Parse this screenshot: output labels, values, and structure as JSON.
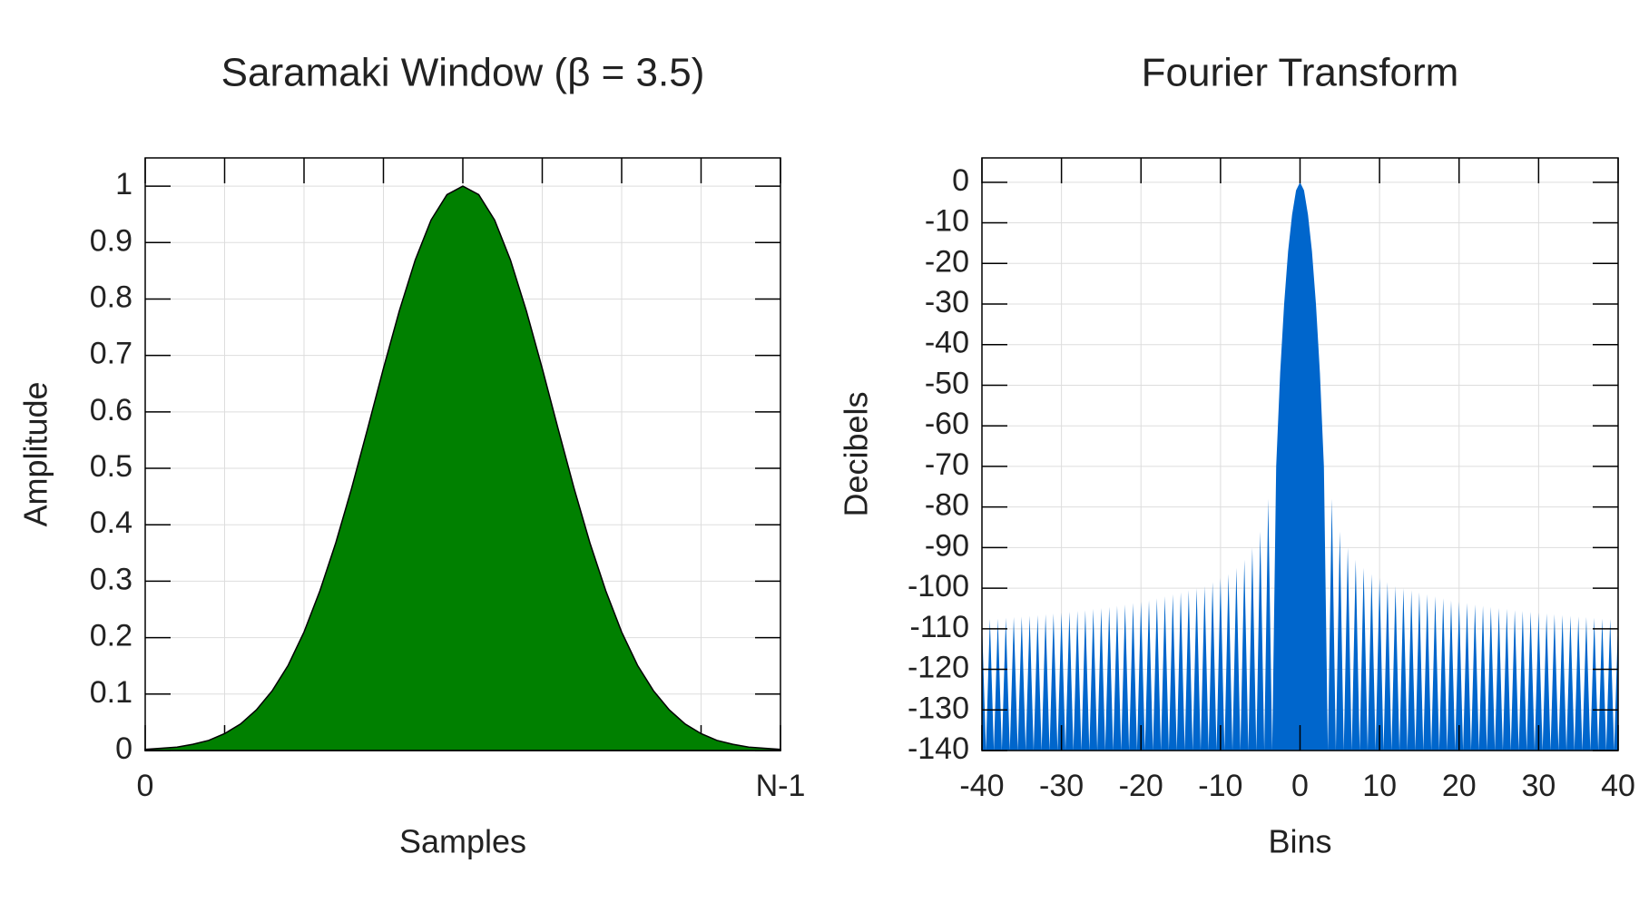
{
  "chart_data": [
    {
      "type": "area",
      "title": "Saramaki Window (β = 3.5)",
      "xlabel": "Samples",
      "ylabel": "Amplitude",
      "color": "#008000",
      "edge_color": "#000000",
      "x": [
        0,
        0.025,
        0.05,
        0.075,
        0.1,
        0.125,
        0.15,
        0.175,
        0.2,
        0.225,
        0.25,
        0.275,
        0.3,
        0.325,
        0.35,
        0.375,
        0.4,
        0.425,
        0.45,
        0.475,
        0.5,
        0.525,
        0.55,
        0.575,
        0.6,
        0.625,
        0.65,
        0.675,
        0.7,
        0.725,
        0.75,
        0.775,
        0.8,
        0.825,
        0.85,
        0.875,
        0.9,
        0.925,
        0.95,
        0.975,
        1
      ],
      "values": [
        0.002,
        0.004,
        0.006,
        0.011,
        0.018,
        0.03,
        0.047,
        0.072,
        0.106,
        0.151,
        0.21,
        0.283,
        0.368,
        0.465,
        0.57,
        0.677,
        0.779,
        0.869,
        0.94,
        0.985,
        1,
        0.985,
        0.94,
        0.869,
        0.779,
        0.677,
        0.57,
        0.465,
        0.368,
        0.283,
        0.21,
        0.151,
        0.106,
        0.072,
        0.047,
        0.03,
        0.018,
        0.011,
        0.006,
        0.004,
        0.002
      ],
      "xlim": [
        0,
        1
      ],
      "ylim": [
        0,
        1.05
      ],
      "xticks": [
        {
          "value": 0,
          "label": "0"
        },
        {
          "value": 1,
          "label": "N-1"
        }
      ],
      "xgrid_step": 0.125,
      "yticks": [
        0,
        0.1,
        0.2,
        0.3,
        0.4,
        0.5,
        0.6,
        0.7,
        0.8,
        0.9,
        1
      ],
      "grid": true
    },
    {
      "type": "area",
      "title": "Fourier Transform",
      "xlabel": "Bins",
      "ylabel": "Decibels",
      "color": "#0066cc",
      "x": [
        -40,
        -39.5,
        -39,
        -38.5,
        -38,
        -37.5,
        -37,
        -36.5,
        -36,
        -35.5,
        -35,
        -34.5,
        -34,
        -33.5,
        -33,
        -32.5,
        -32,
        -31.5,
        -31,
        -30.5,
        -30,
        -29.5,
        -29,
        -28.5,
        -28,
        -27.5,
        -27,
        -26.5,
        -26,
        -25.5,
        -25,
        -24.5,
        -24,
        -23.5,
        -23,
        -22.5,
        -22,
        -21.5,
        -21,
        -20.5,
        -20,
        -19.5,
        -19,
        -18.5,
        -18,
        -17.5,
        -17,
        -16.5,
        -16,
        -15.5,
        -15,
        -14.5,
        -14,
        -13.5,
        -13,
        -12.5,
        -12,
        -11.5,
        -11,
        -10.5,
        -10,
        -9.5,
        -9,
        -8.5,
        -8,
        -7.5,
        -7,
        -6.5,
        -6,
        -5.5,
        -5,
        -4.5,
        -4,
        -3.5,
        -3,
        -2.5,
        -2,
        -1.5,
        -1,
        -0.5,
        0,
        0.5,
        1,
        1.5,
        2,
        2.5,
        3,
        3.5,
        4,
        4.5,
        5,
        5.5,
        6,
        6.5,
        7,
        7.5,
        8,
        8.5,
        9,
        9.5,
        10,
        10.5,
        11,
        11.5,
        12,
        12.5,
        13,
        13.5,
        14,
        14.5,
        15,
        15.5,
        16,
        16.5,
        17,
        17.5,
        18,
        18.5,
        19,
        19.5,
        20,
        20.5,
        21,
        21.5,
        22,
        22.5,
        23,
        23.5,
        24,
        24.5,
        25,
        25.5,
        26,
        26.5,
        27,
        27.5,
        28,
        28.5,
        29,
        29.5,
        30,
        30.5,
        31,
        31.5,
        32,
        32.5,
        33,
        33.5,
        34,
        34.5,
        35,
        35.5,
        36,
        36.5,
        37,
        37.5,
        38,
        38.5,
        39,
        39.5,
        40
      ],
      "values": [
        -107.8,
        -140,
        -107.6,
        -140,
        -107.5,
        -140,
        -107.3,
        -140,
        -107.1,
        -140,
        -107,
        -140,
        -106.8,
        -140,
        -106.6,
        -140,
        -106.4,
        -140,
        -106.2,
        -140,
        -106,
        -140,
        -105.8,
        -140,
        -105.6,
        -140,
        -105.4,
        -140,
        -105.1,
        -140,
        -104.9,
        -140,
        -104.6,
        -140,
        -104.3,
        -140,
        -104,
        -140,
        -103.6,
        -140,
        -103.3,
        -140,
        -103,
        -140,
        -102.5,
        -140,
        -102,
        -140,
        -101.5,
        -140,
        -101,
        -140,
        -100.5,
        -140,
        -100,
        -140,
        -99.5,
        -140,
        -98.5,
        -140,
        -97.5,
        -140,
        -96.5,
        -140,
        -95,
        -140,
        -93,
        -140,
        -90,
        -140,
        -86,
        -140,
        -78,
        -140,
        -70,
        -47,
        -30,
        -17,
        -8,
        -2,
        0,
        -2,
        -8,
        -17,
        -30,
        -47,
        -70,
        -140,
        -78,
        -140,
        -86,
        -140,
        -90,
        -140,
        -93,
        -140,
        -95,
        -140,
        -96.5,
        -140,
        -97.5,
        -140,
        -98.5,
        -140,
        -99.5,
        -140,
        -100,
        -140,
        -100.5,
        -140,
        -101,
        -140,
        -101.5,
        -140,
        -102,
        -140,
        -102.5,
        -140,
        -103,
        -140,
        -103.3,
        -140,
        -103.6,
        -140,
        -104,
        -140,
        -104.3,
        -140,
        -104.6,
        -140,
        -104.9,
        -140,
        -105.1,
        -140,
        -105.4,
        -140,
        -105.6,
        -140,
        -105.8,
        -140,
        -106,
        -140,
        -106.2,
        -140,
        -106.4,
        -140,
        -106.6,
        -140,
        -106.8,
        -140,
        -107,
        -140,
        -107.1,
        -140,
        -107.3,
        -140,
        -107.5,
        -140,
        -107.6,
        -140,
        -107.8
      ],
      "xlim": [
        -40,
        40
      ],
      "ylim": [
        -140,
        6
      ],
      "xticks": [
        -40,
        -30,
        -20,
        -10,
        0,
        10,
        20,
        30,
        40
      ],
      "yticks": [
        0,
        -10,
        -20,
        -30,
        -40,
        -50,
        -60,
        -70,
        -80,
        -90,
        -100,
        -110,
        -120,
        -130,
        -140
      ],
      "grid": true
    }
  ]
}
